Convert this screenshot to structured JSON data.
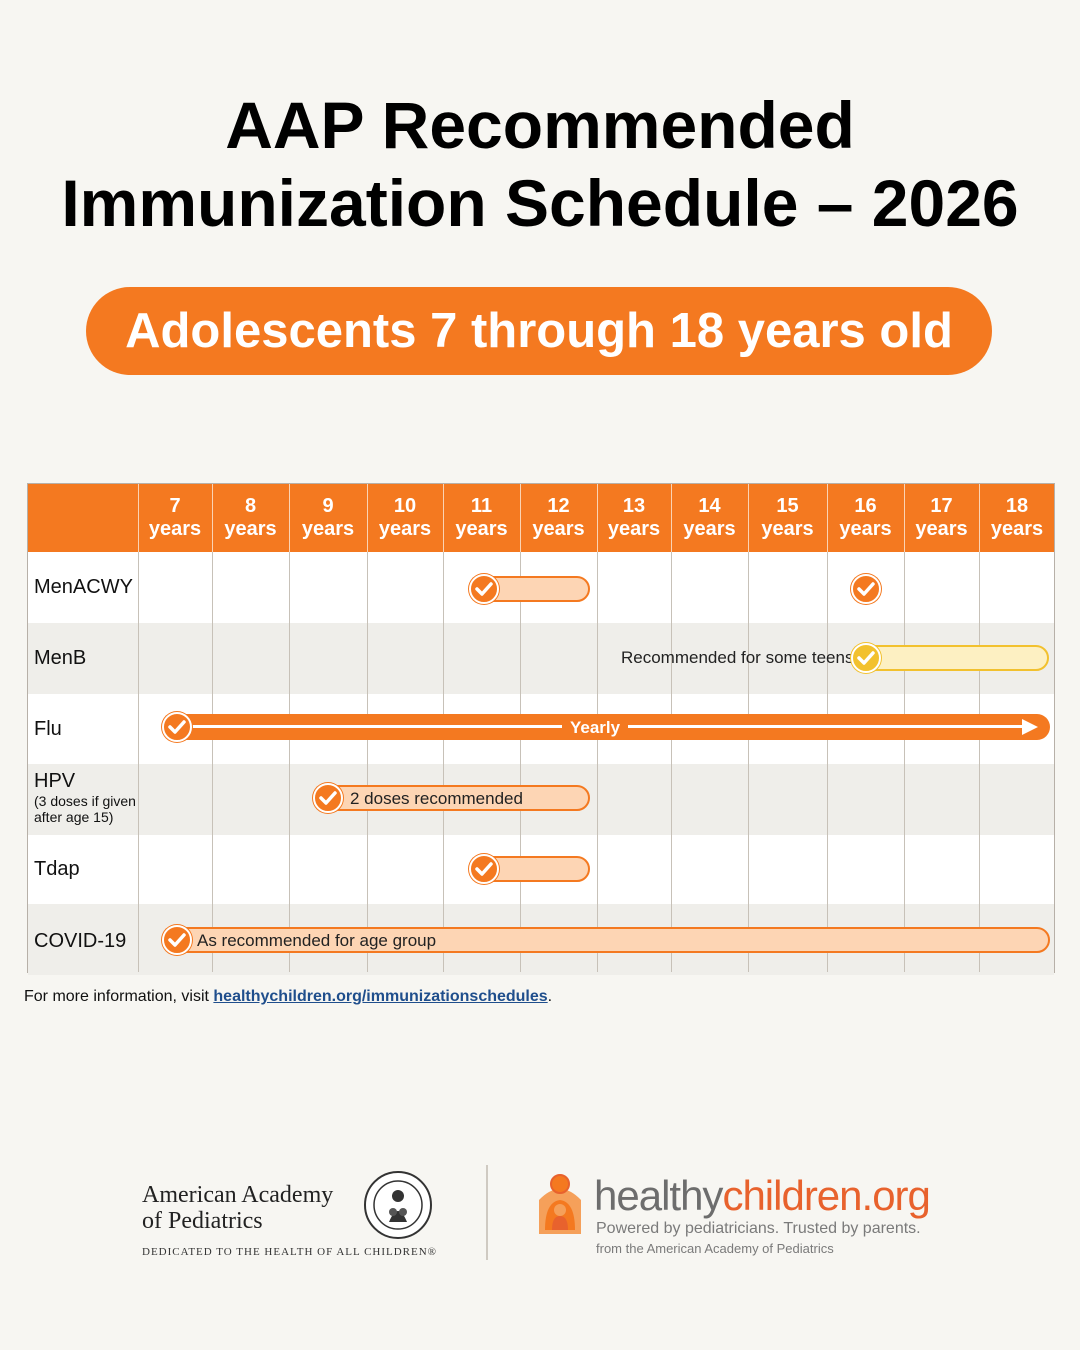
{
  "title": {
    "line1": "AAP Recommended",
    "line2": "Immunization Schedule – 2026"
  },
  "subtitle": "Adolescents 7 through 18 years old",
  "ages": [
    {
      "num": "7",
      "unit": "years"
    },
    {
      "num": "8",
      "unit": "years"
    },
    {
      "num": "9",
      "unit": "years"
    },
    {
      "num": "10",
      "unit": "years"
    },
    {
      "num": "11",
      "unit": "years"
    },
    {
      "num": "12",
      "unit": "years"
    },
    {
      "num": "13",
      "unit": "years"
    },
    {
      "num": "14",
      "unit": "years"
    },
    {
      "num": "15",
      "unit": "years"
    },
    {
      "num": "16",
      "unit": "years"
    },
    {
      "num": "17",
      "unit": "years"
    },
    {
      "num": "18",
      "unit": "years"
    }
  ],
  "vaccines": [
    {
      "name": "MenACWY",
      "sub": ""
    },
    {
      "name": "MenB",
      "sub": ""
    },
    {
      "name": "Flu",
      "sub": ""
    },
    {
      "name": "HPV",
      "sub": "(3 doses if given after age 15)"
    },
    {
      "name": "Tdap",
      "sub": ""
    },
    {
      "name": "COVID-19",
      "sub": ""
    }
  ],
  "bar_texts": {
    "menb": "Recommended for some teens",
    "flu": "Yearly",
    "hpv": "2 doses recommended",
    "covid": "As recommended for age group"
  },
  "footer": {
    "info_prefix": "For more information, visit ",
    "info_link": "healthychildren.org/immunizationschedules",
    "info_suffix": ".",
    "aap_line1": "American Academy",
    "aap_line2": "of Pediatrics",
    "aap_tagline": "DEDICATED TO THE HEALTH OF ALL CHILDREN®",
    "hc_part1": "healthy",
    "hc_part2": "children.org",
    "hc_tagline": "Powered by pediatricians. Trusted by parents.",
    "hc_from": "from the American Academy of Pediatrics"
  },
  "colors": {
    "accent": "#f47920",
    "bar_fill": "#fdd5b4",
    "menb_yellow": "#f2c12e",
    "link": "#1f4e8c"
  }
}
